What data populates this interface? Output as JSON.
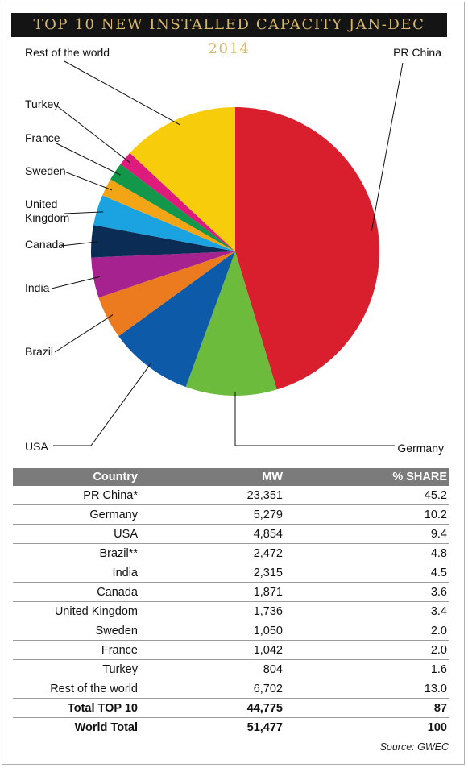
{
  "title": "TOP 10 NEW INSTALLED CAPACITY JAN-DEC 2014",
  "chart_data": {
    "type": "pie",
    "title": "TOP 10 NEW INSTALLED CAPACITY JAN-DEC 2014",
    "categories": [
      "PR China",
      "Germany",
      "USA",
      "Brazil",
      "India",
      "Canada",
      "United Kingdom",
      "Sweden",
      "France",
      "Turkey",
      "Rest of the world"
    ],
    "values": [
      45.2,
      10.2,
      9.4,
      4.8,
      4.5,
      3.6,
      3.4,
      2.0,
      2.0,
      1.6,
      13.0
    ],
    "colors": [
      "#d91f2e",
      "#6dbb3d",
      "#0d5aa8",
      "#ec7a1f",
      "#a6238f",
      "#0b2d55",
      "#1aa3e0",
      "#f3a516",
      "#13974a",
      "#de1b7c",
      "#f7cc0b"
    ]
  },
  "table": {
    "headers": [
      "Country",
      "MW",
      "% SHARE"
    ],
    "rows": [
      [
        "PR China*",
        "23,351",
        "45.2"
      ],
      [
        "Germany",
        "5,279",
        "10.2"
      ],
      [
        "USA",
        "4,854",
        "9.4"
      ],
      [
        "Brazil**",
        "2,472",
        "4.8"
      ],
      [
        "India",
        "2,315",
        "4.5"
      ],
      [
        "Canada",
        "1,871",
        "3.6"
      ],
      [
        "United Kingdom",
        "1,736",
        "3.4"
      ],
      [
        "Sweden",
        "1,050",
        "2.0"
      ],
      [
        "France",
        "1,042",
        "2.0"
      ],
      [
        "Turkey",
        "804",
        "1.6"
      ],
      [
        "Rest of the world",
        "6,702",
        "13.0"
      ]
    ],
    "totals": [
      [
        "Total TOP 10",
        "44,775",
        "87"
      ],
      [
        "World Total",
        "51,477",
        "100"
      ]
    ]
  },
  "source": "Source: GWEC"
}
